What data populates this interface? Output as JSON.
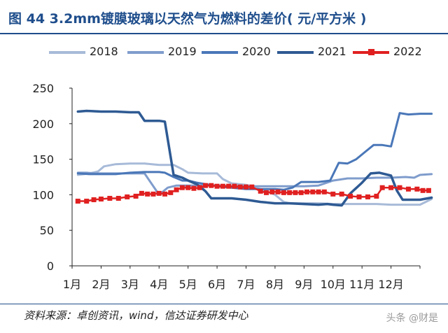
{
  "title": "图  44 3.2mm镀膜玻璃以天然气为燃料的差价( 元/平方米 )",
  "source": "资料来源：卓创资讯，wind，信达证券研发中心",
  "watermark": "头条 @财是",
  "colors": {
    "title": "#1f4e8c",
    "s2018": "#a7bad8",
    "s2019": "#7f9ccc",
    "s2020": "#4a77b8",
    "s2021": "#2e5a93",
    "s2022": "#e02020",
    "axis": "#222222",
    "grid": "#d9d9d9"
  },
  "chart_data": {
    "type": "line",
    "title": "3.2mm镀膜玻璃以天然气为燃料的差价( 元/平方米 )",
    "ylim": [
      0,
      250
    ],
    "yticks": [
      0,
      50,
      100,
      150,
      200,
      250
    ],
    "xlim": [
      0,
      12
    ],
    "xticks": [
      "1月",
      "2月",
      "3月",
      "4月",
      "5月",
      "6月",
      "7月",
      "8月",
      "9月",
      "10月",
      "11月",
      "12月"
    ],
    "grid": false,
    "legend_position": "top",
    "series": [
      {
        "name": "2018",
        "points": [
          [
            0.2,
            128
          ],
          [
            0.6,
            130
          ],
          [
            0.9,
            133
          ],
          [
            1.1,
            140
          ],
          [
            1.5,
            143
          ],
          [
            2.0,
            144
          ],
          [
            2.5,
            144
          ],
          [
            3.0,
            142
          ],
          [
            3.5,
            142
          ],
          [
            3.8,
            136
          ],
          [
            4.0,
            131
          ],
          [
            4.5,
            130
          ],
          [
            5.0,
            130
          ],
          [
            5.2,
            122
          ],
          [
            5.5,
            116
          ],
          [
            6.0,
            114
          ],
          [
            6.5,
            108
          ],
          [
            7.0,
            100
          ],
          [
            7.3,
            90
          ],
          [
            7.5,
            88
          ],
          [
            8.0,
            88
          ],
          [
            8.5,
            88
          ],
          [
            9.0,
            87
          ],
          [
            9.5,
            87
          ],
          [
            10.0,
            87
          ],
          [
            10.5,
            87
          ],
          [
            11.0,
            86
          ],
          [
            11.5,
            86
          ],
          [
            12.0,
            86
          ],
          [
            12.4,
            94
          ]
        ]
      },
      {
        "name": "2019",
        "points": [
          [
            0.2,
            131
          ],
          [
            0.5,
            131
          ],
          [
            0.8,
            130
          ],
          [
            1.0,
            130
          ],
          [
            1.5,
            130
          ],
          [
            2.0,
            130
          ],
          [
            2.5,
            130
          ],
          [
            3.0,
            100
          ],
          [
            3.3,
            110
          ],
          [
            3.6,
            113
          ],
          [
            4.0,
            113
          ],
          [
            4.5,
            113
          ],
          [
            5.0,
            113
          ],
          [
            5.5,
            112
          ],
          [
            6.0,
            112
          ],
          [
            6.5,
            112
          ],
          [
            7.0,
            112
          ],
          [
            7.5,
            112
          ],
          [
            8.0,
            112
          ],
          [
            8.5,
            113
          ],
          [
            9.0,
            120
          ],
          [
            9.5,
            123
          ],
          [
            10.0,
            123
          ],
          [
            10.5,
            124
          ],
          [
            11.0,
            124
          ],
          [
            11.5,
            125
          ],
          [
            11.8,
            124
          ],
          [
            12.0,
            128
          ],
          [
            12.4,
            129
          ]
        ]
      },
      {
        "name": "2020",
        "points": [
          [
            0.2,
            130
          ],
          [
            0.6,
            129
          ],
          [
            1.0,
            129
          ],
          [
            1.5,
            129
          ],
          [
            2.0,
            131
          ],
          [
            2.5,
            132
          ],
          [
            3.0,
            132
          ],
          [
            3.2,
            131
          ],
          [
            3.5,
            125
          ],
          [
            3.8,
            120
          ],
          [
            4.0,
            120
          ],
          [
            4.3,
            117
          ],
          [
            4.6,
            115
          ],
          [
            5.0,
            112
          ],
          [
            5.5,
            110
          ],
          [
            6.0,
            108
          ],
          [
            6.5,
            108
          ],
          [
            7.0,
            108
          ],
          [
            7.3,
            107
          ],
          [
            7.6,
            110
          ],
          [
            7.9,
            118
          ],
          [
            8.2,
            118
          ],
          [
            8.5,
            118
          ],
          [
            8.9,
            120
          ],
          [
            9.2,
            145
          ],
          [
            9.5,
            144
          ],
          [
            9.8,
            150
          ],
          [
            10.1,
            160
          ],
          [
            10.4,
            170
          ],
          [
            10.7,
            170
          ],
          [
            11.0,
            168
          ],
          [
            11.3,
            215
          ],
          [
            11.6,
            213
          ],
          [
            12.0,
            214
          ],
          [
            12.4,
            214
          ]
        ]
      },
      {
        "name": "2021",
        "points": [
          [
            0.2,
            217
          ],
          [
            0.5,
            218
          ],
          [
            1.0,
            217
          ],
          [
            1.5,
            217
          ],
          [
            2.0,
            216
          ],
          [
            2.3,
            216
          ],
          [
            2.5,
            204
          ],
          [
            3.0,
            204
          ],
          [
            3.2,
            203
          ],
          [
            3.5,
            128
          ],
          [
            3.8,
            124
          ],
          [
            4.0,
            120
          ],
          [
            4.3,
            115
          ],
          [
            4.6,
            105
          ],
          [
            4.8,
            95
          ],
          [
            5.0,
            95
          ],
          [
            5.5,
            95
          ],
          [
            6.0,
            93
          ],
          [
            6.5,
            90
          ],
          [
            7.0,
            88
          ],
          [
            7.5,
            88
          ],
          [
            8.0,
            87
          ],
          [
            8.5,
            86
          ],
          [
            8.8,
            87
          ],
          [
            9.0,
            86
          ],
          [
            9.3,
            85
          ],
          [
            9.6,
            102
          ],
          [
            10.0,
            117
          ],
          [
            10.3,
            130
          ],
          [
            10.6,
            131
          ],
          [
            11.0,
            127
          ],
          [
            11.2,
            106
          ],
          [
            11.4,
            93
          ],
          [
            11.6,
            93
          ],
          [
            12.0,
            93
          ],
          [
            12.4,
            96
          ]
        ]
      },
      {
        "name": "2022",
        "markers": true,
        "points": [
          [
            0.2,
            91
          ],
          [
            0.5,
            91
          ],
          [
            0.75,
            93
          ],
          [
            1.0,
            94
          ],
          [
            1.3,
            95
          ],
          [
            1.6,
            95
          ],
          [
            1.9,
            97
          ],
          [
            2.2,
            98
          ],
          [
            2.4,
            102
          ],
          [
            2.6,
            101
          ],
          [
            2.8,
            101
          ],
          [
            3.0,
            102
          ],
          [
            3.2,
            101
          ],
          [
            3.4,
            103
          ],
          [
            3.6,
            107
          ],
          [
            3.8,
            110
          ],
          [
            4.0,
            110
          ],
          [
            4.2,
            109
          ],
          [
            4.4,
            110
          ],
          [
            4.6,
            113
          ],
          [
            4.8,
            113
          ],
          [
            5.0,
            112
          ],
          [
            5.2,
            112
          ],
          [
            5.4,
            112
          ],
          [
            5.6,
            112
          ],
          [
            5.8,
            111
          ],
          [
            6.0,
            111
          ],
          [
            6.2,
            111
          ],
          [
            6.5,
            105
          ],
          [
            6.7,
            103
          ],
          [
            6.9,
            104
          ],
          [
            7.1,
            104
          ],
          [
            7.3,
            103
          ],
          [
            7.5,
            103
          ],
          [
            7.7,
            103
          ],
          [
            7.9,
            103
          ],
          [
            8.1,
            104
          ],
          [
            8.3,
            104
          ],
          [
            8.5,
            104
          ],
          [
            8.7,
            104
          ],
          [
            9.0,
            101
          ],
          [
            9.3,
            101
          ],
          [
            9.6,
            98
          ],
          [
            9.9,
            97
          ],
          [
            10.2,
            97
          ],
          [
            10.5,
            98
          ],
          [
            10.7,
            110
          ],
          [
            11.0,
            110
          ],
          [
            11.3,
            110
          ],
          [
            11.6,
            108
          ],
          [
            11.9,
            108
          ],
          [
            12.1,
            106
          ],
          [
            12.3,
            106
          ]
        ]
      }
    ]
  }
}
